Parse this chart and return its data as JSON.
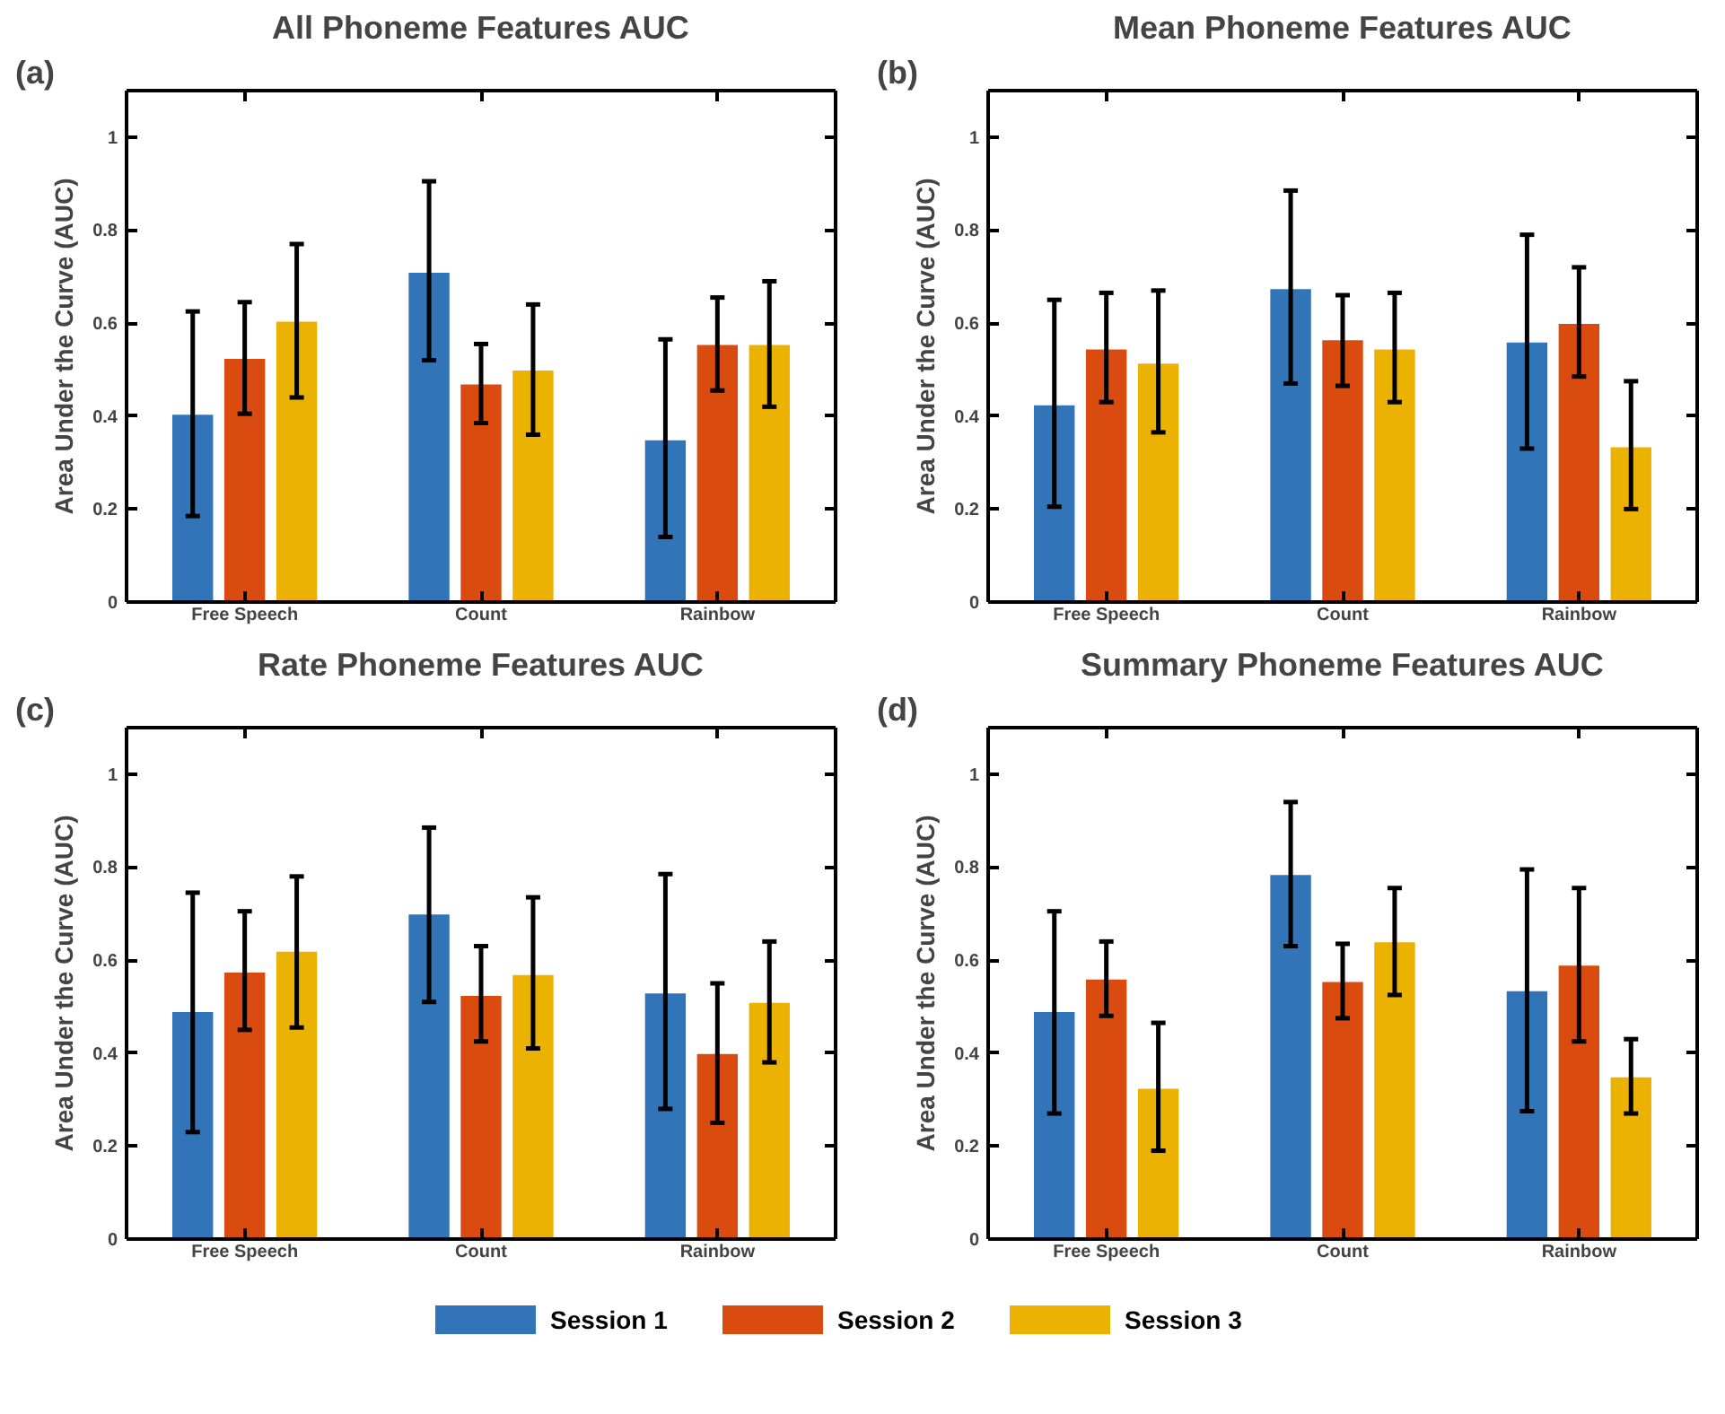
{
  "chart_data": [
    {
      "type": "bar",
      "title": "All Phoneme Features AUC",
      "annotations": [
        "(a)"
      ],
      "ylabel": "Area Under the Curve (AUC)",
      "categories": [
        "Free Speech",
        "Count",
        "Rainbow"
      ],
      "ylim": [
        0,
        1.1
      ],
      "yticks": [
        0,
        0.2,
        0.4,
        0.6,
        0.8,
        1
      ],
      "grid": false,
      "legend": "bottom",
      "series": [
        {
          "name": "Session 1",
          "color": "#3274b8",
          "values": [
            0.405,
            0.71,
            0.35
          ],
          "errors": [
            [
              0.185,
              0.625
            ],
            [
              0.52,
              0.905
            ],
            [
              0.14,
              0.565
            ]
          ]
        },
        {
          "name": "Session 2",
          "color": "#d94b0e",
          "values": [
            0.525,
            0.47,
            0.555
          ],
          "errors": [
            [
              0.405,
              0.645
            ],
            [
              0.385,
              0.555
            ],
            [
              0.455,
              0.655
            ]
          ]
        },
        {
          "name": "Session 3",
          "color": "#ecb201",
          "values": [
            0.605,
            0.5,
            0.555
          ],
          "errors": [
            [
              0.44,
              0.77
            ],
            [
              0.36,
              0.64
            ],
            [
              0.42,
              0.69
            ]
          ]
        }
      ]
    },
    {
      "type": "bar",
      "title": "Mean Phoneme Features AUC",
      "annotations": [
        "(b)"
      ],
      "ylabel": "Area Under the Curve (AUC)",
      "categories": [
        "Free Speech",
        "Count",
        "Rainbow"
      ],
      "ylim": [
        0,
        1.1
      ],
      "yticks": [
        0,
        0.2,
        0.4,
        0.6,
        0.8,
        1
      ],
      "grid": false,
      "legend": "bottom",
      "series": [
        {
          "name": "Session 1",
          "color": "#3274b8",
          "values": [
            0.425,
            0.675,
            0.56
          ],
          "errors": [
            [
              0.205,
              0.65
            ],
            [
              0.47,
              0.885
            ],
            [
              0.33,
              0.79
            ]
          ]
        },
        {
          "name": "Session 2",
          "color": "#d94b0e",
          "values": [
            0.545,
            0.565,
            0.6
          ],
          "errors": [
            [
              0.43,
              0.665
            ],
            [
              0.465,
              0.66
            ],
            [
              0.485,
              0.72
            ]
          ]
        },
        {
          "name": "Session 3",
          "color": "#ecb201",
          "values": [
            0.515,
            0.545,
            0.335
          ],
          "errors": [
            [
              0.365,
              0.67
            ],
            [
              0.43,
              0.665
            ],
            [
              0.2,
              0.475
            ]
          ]
        }
      ]
    },
    {
      "type": "bar",
      "title": "Rate Phoneme Features AUC",
      "annotations": [
        "(c)"
      ],
      "ylabel": "Area Under the Curve (AUC)",
      "categories": [
        "Free Speech",
        "Count",
        "Rainbow"
      ],
      "ylim": [
        0,
        1.1
      ],
      "yticks": [
        0,
        0.2,
        0.4,
        0.6,
        0.8,
        1
      ],
      "grid": false,
      "legend": "bottom",
      "series": [
        {
          "name": "Session 1",
          "color": "#3274b8",
          "values": [
            0.49,
            0.7,
            0.53
          ],
          "errors": [
            [
              0.23,
              0.745
            ],
            [
              0.51,
              0.885
            ],
            [
              0.28,
              0.785
            ]
          ]
        },
        {
          "name": "Session 2",
          "color": "#d94b0e",
          "values": [
            0.575,
            0.525,
            0.4
          ],
          "errors": [
            [
              0.45,
              0.705
            ],
            [
              0.425,
              0.63
            ],
            [
              0.25,
              0.55
            ]
          ]
        },
        {
          "name": "Session 3",
          "color": "#ecb201",
          "values": [
            0.62,
            0.57,
            0.51
          ],
          "errors": [
            [
              0.455,
              0.78
            ],
            [
              0.41,
              0.735
            ],
            [
              0.38,
              0.64
            ]
          ]
        }
      ]
    },
    {
      "type": "bar",
      "title": "Summary Phoneme Features AUC",
      "annotations": [
        "(d)"
      ],
      "ylabel": "Area Under the Curve (AUC)",
      "categories": [
        "Free Speech",
        "Count",
        "Rainbow"
      ],
      "ylim": [
        0,
        1.1
      ],
      "yticks": [
        0,
        0.2,
        0.4,
        0.6,
        0.8,
        1
      ],
      "grid": false,
      "legend": "bottom",
      "series": [
        {
          "name": "Session 1",
          "color": "#3274b8",
          "values": [
            0.49,
            0.785,
            0.535
          ],
          "errors": [
            [
              0.27,
              0.705
            ],
            [
              0.63,
              0.94
            ],
            [
              0.275,
              0.795
            ]
          ]
        },
        {
          "name": "Session 2",
          "color": "#d94b0e",
          "values": [
            0.56,
            0.555,
            0.59
          ],
          "errors": [
            [
              0.48,
              0.64
            ],
            [
              0.475,
              0.635
            ],
            [
              0.425,
              0.755
            ]
          ]
        },
        {
          "name": "Session 3",
          "color": "#ecb201",
          "values": [
            0.325,
            0.64,
            0.35
          ],
          "errors": [
            [
              0.19,
              0.465
            ],
            [
              0.525,
              0.755
            ],
            [
              0.27,
              0.43
            ]
          ]
        }
      ]
    }
  ]
}
